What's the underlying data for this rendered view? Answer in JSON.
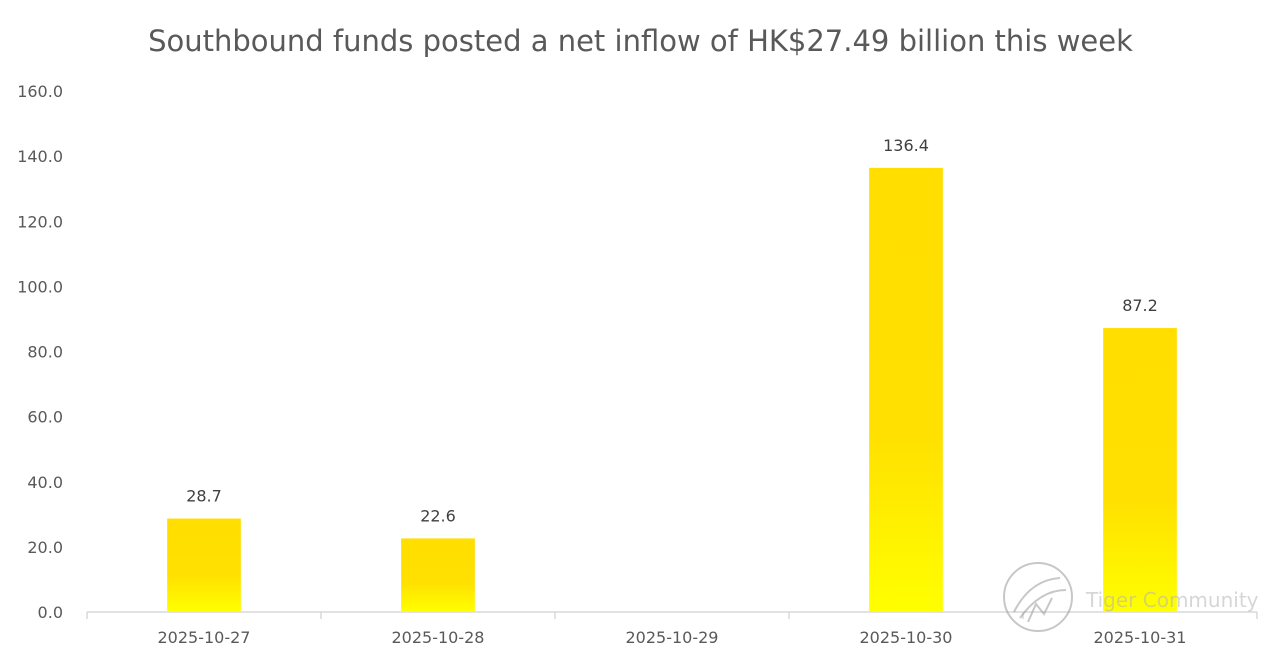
{
  "chart_data": {
    "type": "bar",
    "title": "Southbound funds posted a net inflow of HK$27.49 billion this week",
    "categories": [
      "2025-10-27",
      "2025-10-28",
      "2025-10-29",
      "2025-10-30",
      "2025-10-31"
    ],
    "values": [
      28.7,
      22.6,
      null,
      136.4,
      87.2
    ],
    "data_labels": [
      "28.7",
      "22.6",
      "",
      "136.4",
      "87.2"
    ],
    "y_ticks": [
      "0.0",
      "20.0",
      "40.0",
      "60.0",
      "80.0",
      "100.0",
      "120.0",
      "140.0",
      "160.0"
    ],
    "ylim": [
      0,
      160
    ],
    "grid": false,
    "legend": "none",
    "bar_color_top": "#FFDE00",
    "bar_color_bottom": "#FFFF00"
  },
  "watermark": {
    "text": "Tiger Community"
  }
}
